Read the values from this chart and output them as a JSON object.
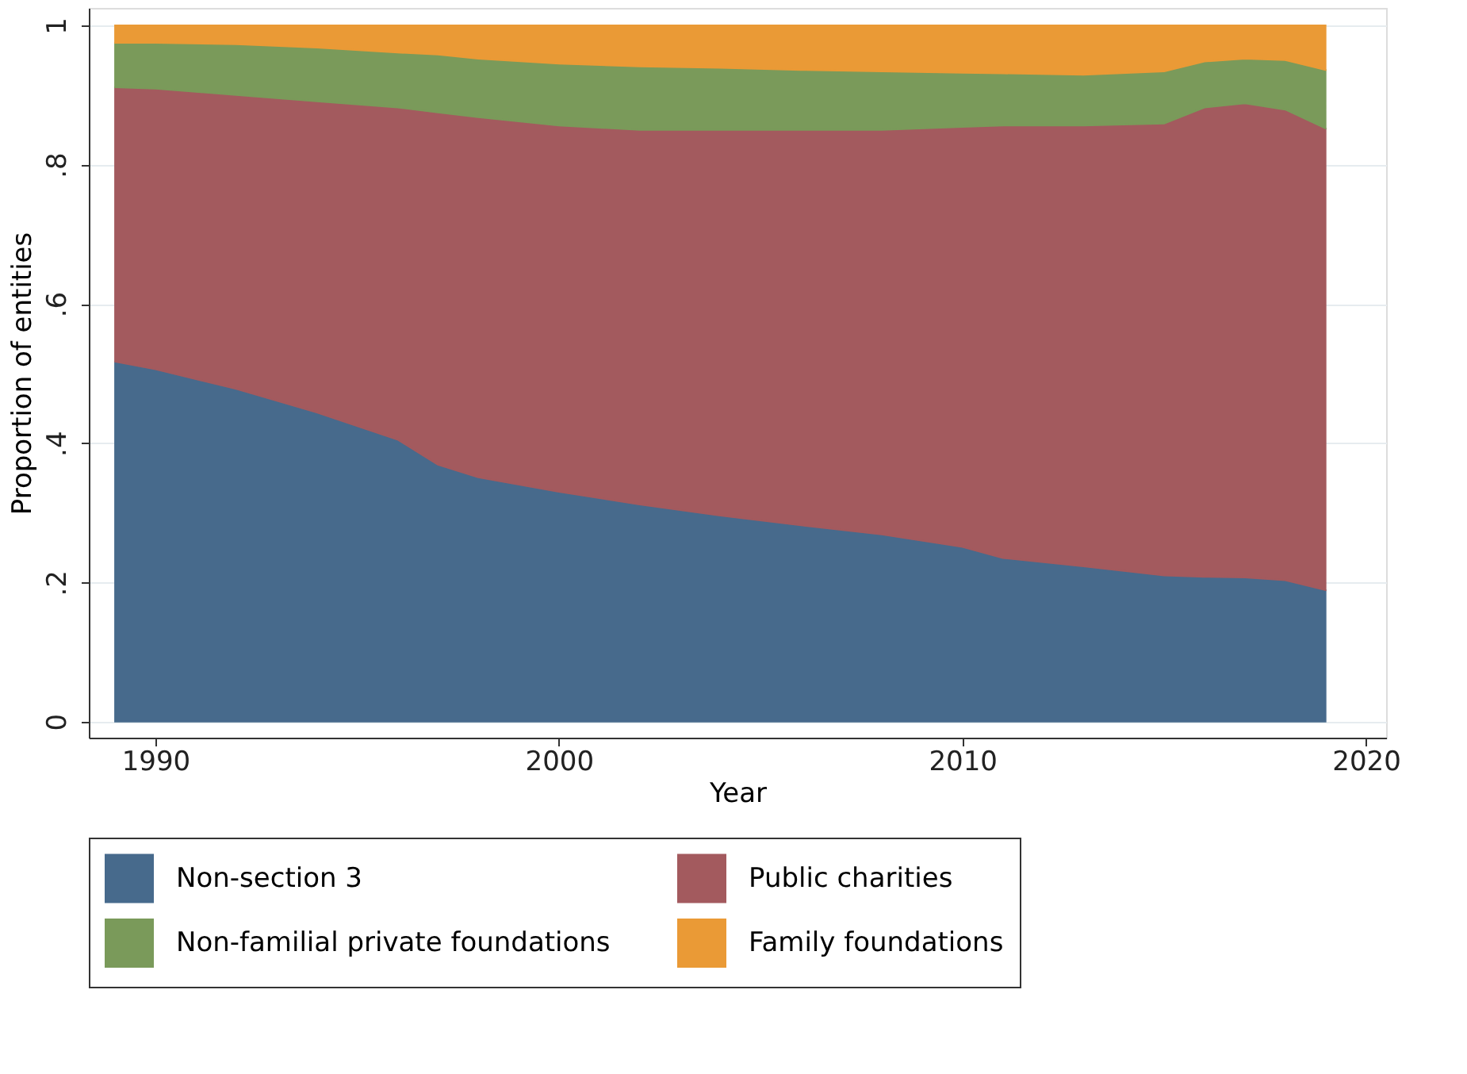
{
  "chart_data": {
    "type": "area",
    "stacked": true,
    "xlabel": "Year",
    "ylabel": "Proportion of entities",
    "x": [
      1989,
      1990,
      1992,
      1994,
      1996,
      1997,
      1998,
      2000,
      2002,
      2004,
      2006,
      2008,
      2010,
      2011,
      2013,
      2015,
      2016,
      2017,
      2018,
      2019
    ],
    "series": [
      {
        "name": "Non-section 3",
        "color": "#476a8c",
        "values": [
          0.517,
          0.506,
          0.478,
          0.444,
          0.405,
          0.369,
          0.351,
          0.33,
          0.312,
          0.296,
          0.282,
          0.269,
          0.251,
          0.235,
          0.223,
          0.21,
          0.208,
          0.207,
          0.203,
          0.189
        ]
      },
      {
        "name": "Public charities",
        "color": "#a35a5e",
        "values": [
          0.394,
          0.403,
          0.422,
          0.447,
          0.477,
          0.506,
          0.517,
          0.526,
          0.538,
          0.554,
          0.568,
          0.581,
          0.603,
          0.621,
          0.633,
          0.649,
          0.674,
          0.681,
          0.676,
          0.663
        ]
      },
      {
        "name": "Non-familial private foundations",
        "color": "#7a9a5a",
        "values": [
          0.064,
          0.066,
          0.073,
          0.077,
          0.079,
          0.083,
          0.084,
          0.089,
          0.091,
          0.089,
          0.086,
          0.084,
          0.078,
          0.075,
          0.073,
          0.075,
          0.066,
          0.064,
          0.071,
          0.084
        ]
      },
      {
        "name": "Family foundations",
        "color": "#ea9a36",
        "values": [
          0.025,
          0.025,
          0.027,
          0.032,
          0.039,
          0.042,
          0.048,
          0.055,
          0.059,
          0.061,
          0.064,
          0.066,
          0.068,
          0.069,
          0.071,
          0.066,
          0.052,
          0.048,
          0.05,
          0.064
        ]
      }
    ],
    "xlim": [
      1988.35,
      2020.5
    ],
    "xticks": [
      1990,
      2000,
      2010,
      2020
    ],
    "ylim": [
      -0.023,
      1.025
    ],
    "yticks": [
      0,
      {
        "value": 0.2,
        "label": ".2"
      },
      {
        "value": 0.4,
        "label": ".4"
      },
      {
        "value": 0.6,
        "label": ".6"
      },
      {
        "value": 0.8,
        "label": ".8"
      },
      1
    ],
    "grid": "y",
    "legend": "bottom"
  }
}
